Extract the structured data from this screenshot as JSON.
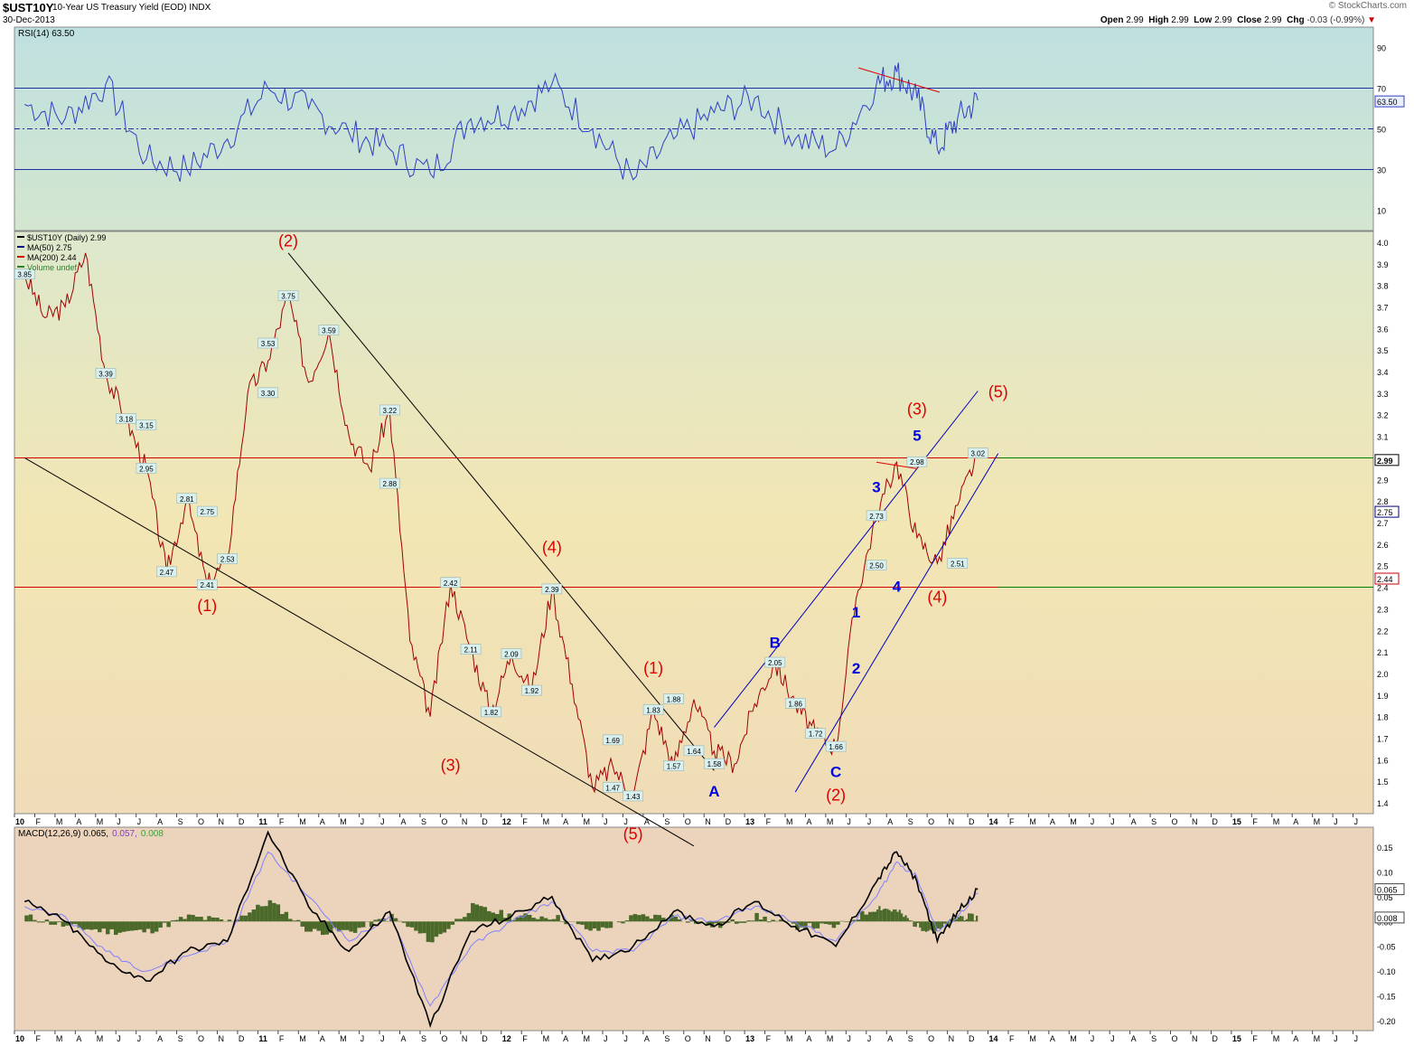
{
  "header": {
    "symbol": "$UST10Y",
    "description": "10-Year US Treasury Yield (EOD)",
    "exchange": "INDX",
    "date": "30-Dec-2013",
    "copyright": "© StockCharts.com",
    "open_label": "Open",
    "open": "2.99",
    "high_label": "High",
    "high": "2.99",
    "low_label": "Low",
    "low": "2.99",
    "close_label": "Close",
    "close": "2.99",
    "chg_label": "Chg",
    "chg": "-0.03 (-0.99%)",
    "chg_arrow": "▼"
  },
  "colors": {
    "price": "#a00000",
    "ma50": "#000080",
    "ma200": "#d00000",
    "rsi": "#3040c0",
    "macd": "#000000",
    "signal": "#8080ff",
    "histogram": "#4b6a2a",
    "wave_red": "#e00000",
    "wave_blue": "#0000e0",
    "trendline": "#000000",
    "channel": "#0000c0",
    "rsi_bg_top": "#bfe0e0",
    "price_bg_top": "#dde8cc",
    "price_bg_bottom": "#f1dfb6",
    "macd_bg": "#ecd4bc"
  },
  "chart_data": [
    {
      "type": "line",
      "id": "rsi",
      "legend": "RSI(14) 63.50",
      "y_ticks": [
        10,
        30,
        50,
        70,
        90
      ],
      "ylim": [
        0,
        100
      ],
      "levels": [
        30,
        50,
        70
      ],
      "last_value": "63.50",
      "series": [
        {
          "name": "RSI(14)",
          "x": [
            "2010-01",
            "2010-03",
            "2010-05",
            "2010-07",
            "2010-09",
            "2010-11",
            "2011-01",
            "2011-03",
            "2011-05",
            "2011-07",
            "2011-09",
            "2011-11",
            "2012-01",
            "2012-03",
            "2012-05",
            "2012-07",
            "2012-09",
            "2012-11",
            "2013-01",
            "2013-03",
            "2013-05",
            "2013-07",
            "2013-08",
            "2013-09",
            "2013-10",
            "2013-11",
            "2013-12"
          ],
          "values": [
            62,
            55,
            72,
            35,
            30,
            45,
            70,
            60,
            48,
            40,
            28,
            55,
            58,
            72,
            50,
            25,
            45,
            58,
            65,
            45,
            40,
            72,
            78,
            65,
            40,
            55,
            64
          ]
        }
      ]
    },
    {
      "type": "line",
      "id": "price",
      "legend": [
        "$UST10Y (Daily) 2.99",
        "MA(50) 2.75",
        "MA(200) 2.44",
        "Volume undef"
      ],
      "y_ticks": [
        "1.4",
        "1.5",
        "1.6",
        "1.7",
        "1.8",
        "1.9",
        "2.0",
        "2.1",
        "2.2",
        "2.3",
        "2.4",
        "2.5",
        "2.6",
        "2.7",
        "2.8",
        "2.9",
        "3.0",
        "3.1",
        "3.2",
        "3.3",
        "3.4",
        "3.5",
        "3.6",
        "3.7",
        "3.8",
        "3.9",
        "4.0"
      ],
      "ylim": [
        1.35,
        4.05
      ],
      "x_ticks": [
        "10",
        "F",
        "M",
        "A",
        "M",
        "J",
        "J",
        "A",
        "S",
        "O",
        "N",
        "D",
        "11",
        "F",
        "M",
        "A",
        "M",
        "J",
        "J",
        "A",
        "S",
        "O",
        "N",
        "D",
        "12",
        "F",
        "M",
        "A",
        "M",
        "J",
        "J",
        "A",
        "S",
        "O",
        "N",
        "D",
        "13",
        "F",
        "M",
        "A",
        "M",
        "J",
        "J",
        "A",
        "S",
        "O",
        "N",
        "D",
        "14",
        "F",
        "M",
        "A",
        "M",
        "J",
        "J",
        "A",
        "S",
        "O",
        "N",
        "D",
        "15",
        "F",
        "M",
        "A",
        "M",
        "J",
        "J"
      ],
      "x_start": "2010-01",
      "horizontal_levels": [
        3.0,
        2.4
      ],
      "series": [
        {
          "name": "$UST10Y",
          "x": [
            "2010-01",
            "2010-02",
            "2010-03",
            "2010-04",
            "2010-05",
            "2010-06",
            "2010-07",
            "2010-08",
            "2010-09",
            "2010-10",
            "2010-11",
            "2010-12",
            "2011-01",
            "2011-02",
            "2011-03",
            "2011-04",
            "2011-05",
            "2011-06",
            "2011-07",
            "2011-08",
            "2011-09",
            "2011-10",
            "2011-11",
            "2011-12",
            "2012-01",
            "2012-02",
            "2012-03",
            "2012-04",
            "2012-05",
            "2012-06",
            "2012-07",
            "2012-08",
            "2012-09",
            "2012-10",
            "2012-11",
            "2012-12",
            "2013-01",
            "2013-02",
            "2013-03",
            "2013-04",
            "2013-05",
            "2013-06",
            "2013-07",
            "2013-08",
            "2013-09",
            "2013-10",
            "2013-11",
            "2013-12"
          ],
          "values": [
            3.85,
            3.65,
            3.7,
            3.95,
            3.39,
            3.18,
            2.95,
            2.47,
            2.81,
            2.41,
            2.53,
            3.3,
            3.45,
            3.75,
            3.35,
            3.59,
            3.1,
            2.95,
            3.22,
            2.15,
            1.8,
            2.42,
            2.11,
            1.82,
            2.09,
            1.92,
            2.39,
            1.95,
            1.47,
            1.57,
            1.43,
            1.83,
            1.57,
            1.88,
            1.64,
            1.58,
            1.86,
            2.05,
            1.86,
            1.72,
            1.66,
            2.35,
            2.73,
            2.98,
            2.63,
            2.51,
            2.78,
            3.02
          ]
        },
        {
          "name": "MA(50)",
          "values": [
            3.7,
            3.75,
            3.8,
            3.7,
            3.4,
            3.1,
            2.9,
            2.7,
            2.6,
            2.55,
            2.7,
            3.0,
            3.35,
            3.5,
            3.5,
            3.45,
            3.2,
            3.05,
            3.0,
            2.6,
            2.1,
            2.0,
            2.05,
            1.98,
            1.95,
            1.98,
            2.1,
            2.05,
            1.75,
            1.6,
            1.55,
            1.62,
            1.7,
            1.72,
            1.72,
            1.7,
            1.8,
            1.95,
            1.95,
            1.8,
            1.8,
            2.1,
            2.5,
            2.7,
            2.75,
            2.65,
            2.65,
            2.75
          ]
        },
        {
          "name": "MA(200)",
          "values": [
            3.5,
            3.55,
            3.6,
            3.62,
            3.55,
            3.45,
            3.3,
            3.15,
            3.0,
            2.9,
            2.85,
            2.88,
            2.95,
            3.1,
            3.2,
            3.3,
            3.35,
            3.3,
            3.25,
            3.1,
            2.9,
            2.7,
            2.5,
            2.3,
            2.2,
            2.1,
            2.05,
            2.0,
            1.95,
            1.9,
            1.82,
            1.75,
            1.72,
            1.72,
            1.7,
            1.7,
            1.72,
            1.75,
            1.8,
            1.82,
            1.85,
            1.9,
            2.05,
            2.2,
            2.3,
            2.38,
            2.42,
            2.44
          ]
        }
      ],
      "data_labels": [
        {
          "x": "2010-01",
          "y": 3.85,
          "text": "3.85"
        },
        {
          "x": "2010-05",
          "y": 3.39,
          "text": "3.39"
        },
        {
          "x": "2010-06",
          "y": 3.18,
          "text": "3.18"
        },
        {
          "x": "2010-07",
          "y": 3.15,
          "text": "3.15"
        },
        {
          "x": "2010-07",
          "y": 2.95,
          "text": "2.95"
        },
        {
          "x": "2010-09",
          "y": 2.81,
          "text": "2.81"
        },
        {
          "x": "2010-08",
          "y": 2.47,
          "text": "2.47"
        },
        {
          "x": "2010-10",
          "y": 2.41,
          "text": "2.41"
        },
        {
          "x": "2010-10",
          "y": 2.75,
          "text": "2.75"
        },
        {
          "x": "2010-11",
          "y": 2.53,
          "text": "2.53"
        },
        {
          "x": "2011-01",
          "y": 3.53,
          "text": "3.53"
        },
        {
          "x": "2011-01",
          "y": 3.3,
          "text": "3.30"
        },
        {
          "x": "2011-02",
          "y": 3.75,
          "text": "3.75"
        },
        {
          "x": "2011-04",
          "y": 3.59,
          "text": "3.59"
        },
        {
          "x": "2011-07",
          "y": 3.22,
          "text": "3.22"
        },
        {
          "x": "2011-07",
          "y": 2.88,
          "text": "2.88"
        },
        {
          "x": "2011-10",
          "y": 2.42,
          "text": "2.42"
        },
        {
          "x": "2011-11",
          "y": 2.11,
          "text": "2.11"
        },
        {
          "x": "2011-12",
          "y": 1.82,
          "text": "1.82"
        },
        {
          "x": "2012-01",
          "y": 2.09,
          "text": "2.09"
        },
        {
          "x": "2012-02",
          "y": 1.92,
          "text": "1.92"
        },
        {
          "x": "2012-03",
          "y": 2.39,
          "text": "2.39"
        },
        {
          "x": "2012-06",
          "y": 1.47,
          "text": "1.47"
        },
        {
          "x": "2012-06",
          "y": 1.69,
          "text": "1.69"
        },
        {
          "x": "2012-07",
          "y": 1.43,
          "text": "1.43"
        },
        {
          "x": "2012-08",
          "y": 1.83,
          "text": "1.83"
        },
        {
          "x": "2012-09",
          "y": 1.57,
          "text": "1.57"
        },
        {
          "x": "2012-09",
          "y": 1.88,
          "text": "1.88"
        },
        {
          "x": "2012-10",
          "y": 1.64,
          "text": "1.64"
        },
        {
          "x": "2012-11",
          "y": 1.58,
          "text": "1.58"
        },
        {
          "x": "2013-02",
          "y": 2.05,
          "text": "2.05"
        },
        {
          "x": "2013-03",
          "y": 1.86,
          "text": "1.86"
        },
        {
          "x": "2013-04",
          "y": 1.72,
          "text": "1.72"
        },
        {
          "x": "2013-05",
          "y": 1.66,
          "text": "1.66"
        },
        {
          "x": "2013-07",
          "y": 2.73,
          "text": "2.73"
        },
        {
          "x": "2013-07",
          "y": 2.5,
          "text": "2.50"
        },
        {
          "x": "2013-09",
          "y": 2.98,
          "text": "2.98"
        },
        {
          "x": "2013-11",
          "y": 2.51,
          "text": "2.51"
        },
        {
          "x": "2013-12",
          "y": 3.02,
          "text": "3.02"
        }
      ],
      "annotations": [
        {
          "x": "2011-02",
          "y": 3.98,
          "text": "(2)",
          "color": "red"
        },
        {
          "x": "2010-10",
          "y": 2.29,
          "text": "(1)",
          "color": "red"
        },
        {
          "x": "2011-10",
          "y": 1.55,
          "text": "(3)",
          "color": "red"
        },
        {
          "x": "2012-03",
          "y": 2.56,
          "text": "(4)",
          "color": "red"
        },
        {
          "x": "2012-07",
          "y": 1.23,
          "text": "(5)",
          "color": "red"
        },
        {
          "x": "2012-08",
          "y": 2.0,
          "text": "(1)",
          "color": "red"
        },
        {
          "x": "2013-05",
          "y": 1.41,
          "text": "(2)",
          "color": "red"
        },
        {
          "x": "2013-09",
          "y": 3.2,
          "text": "(3)",
          "color": "red"
        },
        {
          "x": "2013-10",
          "y": 2.33,
          "text": "(4)",
          "color": "red"
        },
        {
          "x": "2014-01",
          "y": 3.28,
          "text": "(5)",
          "color": "red"
        },
        {
          "x": "2012-11",
          "y": 1.43,
          "text": "A",
          "color": "blue"
        },
        {
          "x": "2013-02",
          "y": 2.12,
          "text": "B",
          "color": "blue"
        },
        {
          "x": "2013-05",
          "y": 1.52,
          "text": "C",
          "color": "blue"
        },
        {
          "x": "2013-06",
          "y": 2.26,
          "text": "1",
          "color": "blue"
        },
        {
          "x": "2013-06",
          "y": 2.0,
          "text": "2",
          "color": "blue"
        },
        {
          "x": "2013-07",
          "y": 2.84,
          "text": "3",
          "color": "blue"
        },
        {
          "x": "2013-08",
          "y": 2.38,
          "text": "4",
          "color": "blue"
        },
        {
          "x": "2013-09",
          "y": 3.08,
          "text": "5",
          "color": "blue"
        }
      ],
      "trendlines": [
        {
          "from": [
            "2010-01",
            3.0
          ],
          "to": [
            "2012-10",
            1.2
          ],
          "color": "black"
        },
        {
          "from": [
            "2011-02",
            3.95
          ],
          "to": [
            "2012-11",
            1.55
          ],
          "color": "black"
        },
        {
          "from": [
            "2012-11",
            1.75
          ],
          "to": [
            "2013-12",
            3.31
          ],
          "color": "blue"
        },
        {
          "from": [
            "2013-03",
            1.45
          ],
          "to": [
            "2014-01",
            3.02
          ],
          "color": "blue"
        },
        {
          "from": [
            "2013-07",
            2.98
          ],
          "to": [
            "2013-09",
            2.95
          ],
          "color": "red"
        }
      ],
      "price_tags": [
        "2.99",
        "2.75",
        "2.44"
      ]
    },
    {
      "type": "line",
      "id": "macd",
      "legend": [
        "MACD(12,26,9) 0.065,",
        "0.057,",
        "0.008"
      ],
      "y_ticks": [
        "-0.20",
        "-0.15",
        "-0.10",
        "-0.05",
        "0.00",
        "0.05",
        "0.10",
        "0.15"
      ],
      "ylim": [
        -0.22,
        0.19
      ],
      "price_tags": [
        "0.065",
        "0.008"
      ],
      "series": [
        {
          "name": "MACD",
          "x": [
            "2010-01",
            "2010-03",
            "2010-05",
            "2010-07",
            "2010-09",
            "2010-11",
            "2011-01",
            "2011-03",
            "2011-05",
            "2011-07",
            "2011-09",
            "2011-11",
            "2012-01",
            "2012-03",
            "2012-05",
            "2012-07",
            "2012-09",
            "2012-11",
            "2013-01",
            "2013-03",
            "2013-05",
            "2013-07",
            "2013-08",
            "2013-09",
            "2013-10",
            "2013-11",
            "2013-12"
          ],
          "values": [
            0.04,
            0.0,
            -0.08,
            -0.12,
            -0.06,
            -0.04,
            0.18,
            0.03,
            -0.06,
            0.02,
            -0.21,
            -0.02,
            0.01,
            0.05,
            -0.08,
            -0.05,
            0.02,
            -0.01,
            0.04,
            -0.01,
            -0.05,
            0.08,
            0.14,
            0.08,
            -0.04,
            0.02,
            0.065
          ]
        },
        {
          "name": "Signal",
          "values": [
            0.03,
            0.01,
            -0.06,
            -0.1,
            -0.07,
            -0.04,
            0.14,
            0.05,
            -0.04,
            0.01,
            -0.17,
            -0.05,
            0.0,
            0.04,
            -0.06,
            -0.06,
            0.01,
            0.0,
            0.03,
            0.0,
            -0.04,
            0.05,
            0.12,
            0.09,
            -0.02,
            0.01,
            0.057
          ]
        },
        {
          "name": "Histogram",
          "values": [
            0.01,
            -0.01,
            -0.02,
            -0.02,
            0.01,
            0.0,
            0.04,
            -0.02,
            -0.02,
            0.01,
            -0.04,
            0.03,
            0.01,
            0.01,
            -0.02,
            0.01,
            0.01,
            -0.01,
            0.01,
            -0.01,
            -0.01,
            0.03,
            0.02,
            -0.01,
            -0.02,
            0.01,
            0.008
          ]
        }
      ],
      "x_ticks": [
        "10",
        "F",
        "M",
        "A",
        "M",
        "J",
        "J",
        "A",
        "S",
        "O",
        "N",
        "D",
        "11",
        "F",
        "M",
        "A",
        "M",
        "J",
        "J",
        "A",
        "S",
        "O",
        "N",
        "D",
        "12",
        "F",
        "M",
        "A",
        "M",
        "J",
        "J",
        "A",
        "S",
        "O",
        "N",
        "D",
        "13",
        "F",
        "M",
        "A",
        "M",
        "J",
        "J",
        "A",
        "S",
        "O",
        "N",
        "D",
        "14",
        "F",
        "M",
        "A",
        "M",
        "J",
        "J",
        "A",
        "S",
        "O",
        "N",
        "D",
        "15",
        "F",
        "M",
        "A",
        "M",
        "J",
        "J"
      ]
    }
  ]
}
